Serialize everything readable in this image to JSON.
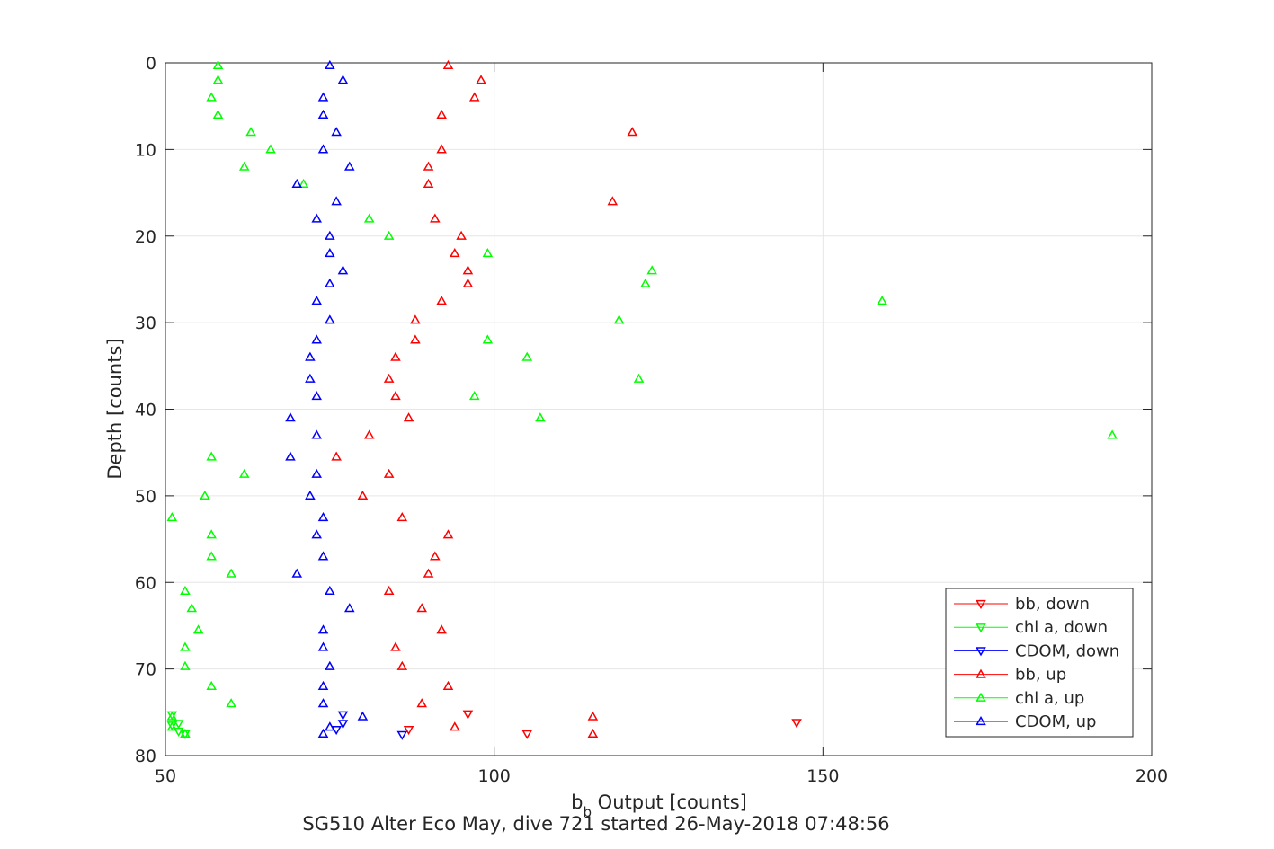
{
  "chart_data": {
    "type": "scatter",
    "title": "SG510 Alter Eco May, dive 721 started 26-May-2018 07:48:56",
    "xlabel": "b",
    "xlabel_sub": "b",
    "xlabel_rest": " Output [counts]",
    "ylabel": "Depth [counts]",
    "xlim": [
      50,
      200
    ],
    "ylim": [
      0,
      80
    ],
    "y_reversed": true,
    "grid": true,
    "legend_position": "bottom-right",
    "xticks": [
      "50",
      "100",
      "150",
      "200"
    ],
    "yticks": [
      "0",
      "10",
      "20",
      "30",
      "40",
      "50",
      "60",
      "70",
      "80"
    ],
    "series": [
      {
        "name": "bb, down",
        "color": "#ff0000",
        "marker": "down",
        "points": [
          [
            96,
            75.2
          ],
          [
            146,
            76.2
          ],
          [
            87,
            77
          ],
          [
            105,
            77.5
          ]
        ]
      },
      {
        "name": "chl a, down",
        "color": "#00ff00",
        "marker": "down",
        "points": [
          [
            51,
            75.3
          ],
          [
            52,
            76.3
          ],
          [
            51,
            76.5
          ],
          [
            52,
            77.2
          ],
          [
            53,
            77.5
          ]
        ]
      },
      {
        "name": "CDOM, down",
        "color": "#0000ff",
        "marker": "down",
        "points": [
          [
            77,
            75.3
          ],
          [
            77,
            76.3
          ],
          [
            76,
            77
          ],
          [
            86,
            77.6
          ]
        ]
      },
      {
        "name": "bb, up",
        "color": "#ff0000",
        "marker": "up",
        "points": [
          [
            93,
            0.3
          ],
          [
            98,
            2
          ],
          [
            97,
            4
          ],
          [
            92,
            6
          ],
          [
            121,
            8
          ],
          [
            92,
            10
          ],
          [
            90,
            12
          ],
          [
            90,
            14
          ],
          [
            118,
            16
          ],
          [
            91,
            18
          ],
          [
            95,
            20
          ],
          [
            94,
            22
          ],
          [
            96,
            24
          ],
          [
            96,
            25.5
          ],
          [
            92,
            27.5
          ],
          [
            88,
            29.7
          ],
          [
            88,
            32
          ],
          [
            85,
            34
          ],
          [
            84,
            36.5
          ],
          [
            85,
            38.5
          ],
          [
            87,
            41
          ],
          [
            81,
            43
          ],
          [
            76,
            45.5
          ],
          [
            84,
            47.5
          ],
          [
            80,
            50
          ],
          [
            86,
            52.5
          ],
          [
            93,
            54.5
          ],
          [
            91,
            57
          ],
          [
            90,
            59
          ],
          [
            84,
            61
          ],
          [
            89,
            63
          ],
          [
            92,
            65.5
          ],
          [
            85,
            67.5
          ],
          [
            86,
            69.7
          ],
          [
            93,
            72
          ],
          [
            89,
            74
          ],
          [
            115,
            75.5
          ],
          [
            94,
            76.7
          ],
          [
            115,
            77.5
          ]
        ]
      },
      {
        "name": "chl a, up",
        "color": "#00ff00",
        "marker": "up",
        "points": [
          [
            58,
            0.3
          ],
          [
            58,
            2
          ],
          [
            57,
            4
          ],
          [
            58,
            6
          ],
          [
            63,
            8
          ],
          [
            66,
            10
          ],
          [
            62,
            12
          ],
          [
            71,
            14
          ],
          [
            81,
            18
          ],
          [
            84,
            20
          ],
          [
            99,
            22
          ],
          [
            124,
            24
          ],
          [
            123,
            25.5
          ],
          [
            159,
            27.5
          ],
          [
            119,
            29.7
          ],
          [
            99,
            32
          ],
          [
            105,
            34
          ],
          [
            122,
            36.5
          ],
          [
            97,
            38.5
          ],
          [
            107,
            41
          ],
          [
            194,
            43
          ],
          [
            57,
            45.5
          ],
          [
            62,
            47.5
          ],
          [
            56,
            50
          ],
          [
            51,
            52.5
          ],
          [
            57,
            54.5
          ],
          [
            57,
            57
          ],
          [
            60,
            59
          ],
          [
            53,
            61
          ],
          [
            54,
            63
          ],
          [
            55,
            65.5
          ],
          [
            53,
            67.5
          ],
          [
            53,
            69.7
          ],
          [
            57,
            72
          ],
          [
            60,
            74
          ],
          [
            51,
            75.5
          ],
          [
            51,
            76.7
          ],
          [
            53,
            77.5
          ]
        ]
      },
      {
        "name": "CDOM, up",
        "color": "#0000ff",
        "marker": "up",
        "points": [
          [
            75,
            0.3
          ],
          [
            77,
            2
          ],
          [
            74,
            4
          ],
          [
            74,
            6
          ],
          [
            76,
            8
          ],
          [
            74,
            10
          ],
          [
            78,
            12
          ],
          [
            70,
            14
          ],
          [
            76,
            16
          ],
          [
            73,
            18
          ],
          [
            75,
            20
          ],
          [
            75,
            22
          ],
          [
            77,
            24
          ],
          [
            75,
            25.5
          ],
          [
            73,
            27.5
          ],
          [
            75,
            29.7
          ],
          [
            73,
            32
          ],
          [
            72,
            34
          ],
          [
            72,
            36.5
          ],
          [
            73,
            38.5
          ],
          [
            69,
            41
          ],
          [
            73,
            43
          ],
          [
            69,
            45.5
          ],
          [
            73,
            47.5
          ],
          [
            72,
            50
          ],
          [
            74,
            52.5
          ],
          [
            73,
            54.5
          ],
          [
            74,
            57
          ],
          [
            70,
            59
          ],
          [
            75,
            61
          ],
          [
            78,
            63
          ],
          [
            74,
            65.5
          ],
          [
            74,
            67.5
          ],
          [
            75,
            69.7
          ],
          [
            74,
            72
          ],
          [
            74,
            74
          ],
          [
            80,
            75.5
          ],
          [
            75,
            76.7
          ],
          [
            74,
            77.5
          ]
        ]
      }
    ]
  }
}
